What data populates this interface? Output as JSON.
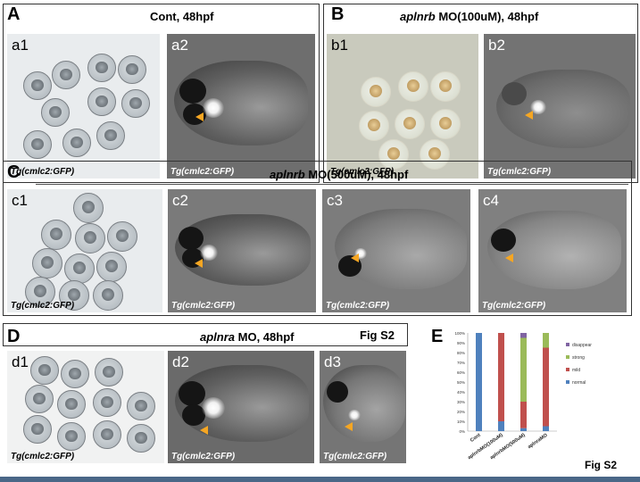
{
  "panels": {
    "A": {
      "label": "A",
      "title": "Cont, 48hpf"
    },
    "B": {
      "label": "B",
      "title_italic": "aplnrb",
      "title_rest": " MO(100uM),  48hpf"
    },
    "C": {
      "label": "C",
      "title_italic": "aplnrb",
      "title_rest": " MO(500uM),  48hpf"
    },
    "D": {
      "label": "D",
      "title_italic": "aplnra",
      "title_rest": " MO, 48hpf",
      "fig_label": "Fig S2"
    },
    "E": {
      "label": "E",
      "fig_label": "Fig S2"
    }
  },
  "images": {
    "a1": {
      "sub": "a1",
      "tg": "Tg(cmlc2:GFP)"
    },
    "a2": {
      "sub": "a2",
      "tg": "Tg(cmlc2:GFP)"
    },
    "b1": {
      "sub": "b1",
      "tg": "Tg(cmlc2:GFP)"
    },
    "b2": {
      "sub": "b2",
      "tg": "Tg(cmlc2:GFP)"
    },
    "c1": {
      "sub": "c1",
      "tg": "Tg(cmlc2:GFP)"
    },
    "c2": {
      "sub": "c2",
      "tg": "Tg(cmlc2:GFP)"
    },
    "c3": {
      "sub": "c3",
      "tg": "Tg(cmlc2:GFP)"
    },
    "c4": {
      "sub": "c4",
      "tg": "Tg(cmlc2:GFP)"
    },
    "d1": {
      "sub": "d1",
      "tg": "Tg(cmlc2:GFP)"
    },
    "d2": {
      "sub": "d2",
      "tg": "Tg(cmlc2:GFP)"
    },
    "d3": {
      "sub": "d3",
      "tg": "Tg(cmlc2:GFP)"
    }
  },
  "colors": {
    "arrow": "#f5a623",
    "normal": "#4f81bd",
    "mild": "#c0504d",
    "strong": "#9bbb59",
    "disappear": "#8064a2",
    "footer": "#4a6787"
  },
  "chart_data": {
    "type": "bar",
    "stacked": true,
    "percent": true,
    "categories": [
      "Cont",
      "aplnrbMO(100uM)",
      "aplnrbMO(500uM)",
      "aplnraMO"
    ],
    "series": [
      {
        "name": "normal",
        "values": [
          100,
          10,
          3,
          5
        ]
      },
      {
        "name": "mild",
        "values": [
          0,
          90,
          27,
          80
        ]
      },
      {
        "name": "strong",
        "values": [
          0,
          0,
          65,
          15
        ]
      },
      {
        "name": "disappear",
        "values": [
          0,
          0,
          5,
          0
        ]
      }
    ],
    "yticks": [
      "0%",
      "10%",
      "20%",
      "30%",
      "40%",
      "50%",
      "60%",
      "70%",
      "80%",
      "90%",
      "100%"
    ],
    "ylim": [
      0,
      100
    ],
    "legend": "right",
    "legend_order": [
      "disappear",
      "strong",
      "mild",
      "normal"
    ]
  }
}
